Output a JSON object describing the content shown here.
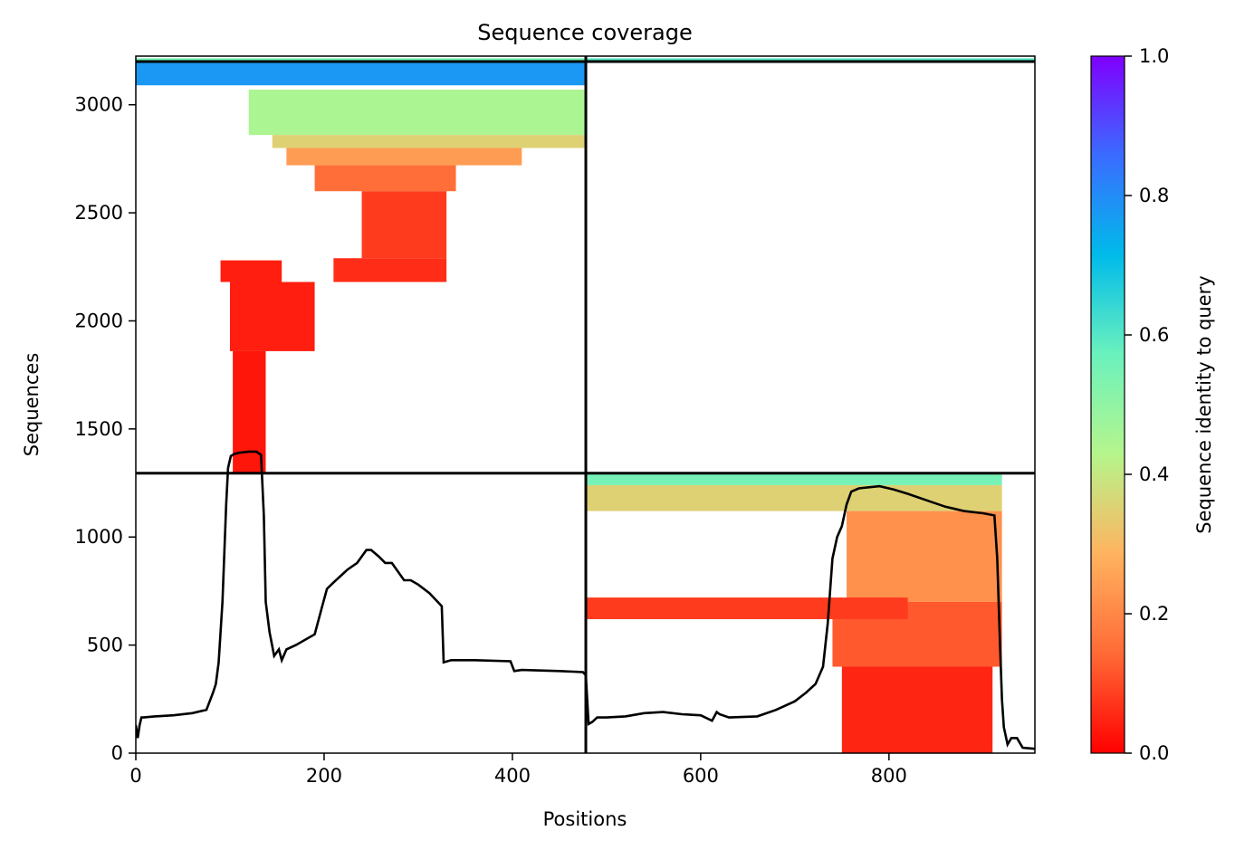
{
  "chart_data": {
    "type": "heatmap",
    "title": "Sequence coverage",
    "xlabel": "Positions",
    "ylabel": "Sequences",
    "xlim": [
      0,
      955
    ],
    "ylim": [
      0,
      3225
    ],
    "xticks": [
      0,
      200,
      400,
      600,
      800
    ],
    "yticks": [
      0,
      500,
      1000,
      1500,
      2000,
      2500,
      3000
    ],
    "colorbar": {
      "label": "Sequence identity to query",
      "range": [
        0.0,
        1.0
      ],
      "ticks": [
        "0.0",
        "0.2",
        "0.4",
        "0.6",
        "0.8",
        "1.0"
      ],
      "colormap": "rainbow_r",
      "stops": [
        "#ff0000",
        "#ff6a36",
        "#ffb360",
        "#b6f58c",
        "#6bf2bd",
        "#00bbea",
        "#3a6cff",
        "#8000ff"
      ]
    },
    "chain_boundary_x": 478,
    "chain_boundary_ys": [
      1295,
      3200
    ],
    "coverage_line": {
      "name": "",
      "color": "#000000",
      "x": [
        0,
        2,
        4,
        6,
        8,
        20,
        40,
        60,
        75,
        82,
        85,
        88,
        92,
        96,
        98,
        101,
        105,
        110,
        120,
        128,
        133,
        136,
        138,
        142,
        147,
        152,
        155,
        160,
        170,
        190,
        198,
        203,
        210,
        225,
        235,
        245,
        250,
        258,
        265,
        272,
        285,
        292,
        300,
        312,
        325,
        327,
        335,
        360,
        398,
        402,
        410,
        450,
        475,
        478,
        481,
        485,
        490,
        500,
        520,
        540,
        560,
        580,
        600,
        612,
        617,
        620,
        630,
        660,
        680,
        700,
        712,
        722,
        730,
        735,
        740,
        745,
        750,
        755,
        760,
        768,
        790,
        805,
        820,
        840,
        860,
        870,
        880,
        900,
        912,
        915,
        918,
        920,
        922,
        926,
        930,
        936,
        942,
        955
      ],
      "y": [
        130,
        70,
        130,
        165,
        165,
        170,
        175,
        185,
        200,
        280,
        320,
        420,
        700,
        1150,
        1320,
        1375,
        1385,
        1390,
        1395,
        1395,
        1380,
        1100,
        700,
        560,
        450,
        480,
        430,
        480,
        500,
        550,
        680,
        760,
        790,
        850,
        880,
        940,
        940,
        910,
        880,
        880,
        800,
        800,
        780,
        740,
        680,
        420,
        430,
        430,
        425,
        380,
        385,
        380,
        375,
        360,
        135,
        145,
        165,
        165,
        170,
        185,
        190,
        180,
        175,
        150,
        190,
        180,
        165,
        170,
        200,
        240,
        280,
        320,
        400,
        600,
        900,
        1000,
        1050,
        1150,
        1210,
        1225,
        1235,
        1220,
        1200,
        1170,
        1140,
        1130,
        1120,
        1110,
        1100,
        900,
        500,
        250,
        120,
        40,
        70,
        70,
        25,
        20
      ]
    },
    "msa_bands": [
      {
        "x": [
          0,
          478
        ],
        "y": [
          3200,
          3215
        ],
        "identity": 0.55
      },
      {
        "x": [
          0,
          478
        ],
        "y": [
          3090,
          3200
        ],
        "identity": 0.78
      },
      {
        "x": [
          120,
          478
        ],
        "y": [
          2860,
          3070
        ],
        "identity": 0.45
      },
      {
        "x": [
          145,
          478
        ],
        "y": [
          2800,
          2860
        ],
        "identity": 0.35
      },
      {
        "x": [
          160,
          410
        ],
        "y": [
          2720,
          2800
        ],
        "identity": 0.24
      },
      {
        "x": [
          190,
          340
        ],
        "y": [
          2600,
          2720
        ],
        "identity": 0.15
      },
      {
        "x": [
          240,
          330
        ],
        "y": [
          2290,
          2600
        ],
        "identity": 0.08
      },
      {
        "x": [
          210,
          330
        ],
        "y": [
          2180,
          2290
        ],
        "identity": 0.06
      },
      {
        "x": [
          90,
          155
        ],
        "y": [
          2180,
          2280
        ],
        "identity": 0.04
      },
      {
        "x": [
          100,
          190
        ],
        "y": [
          1860,
          2180
        ],
        "identity": 0.04
      },
      {
        "x": [
          103,
          138
        ],
        "y": [
          1295,
          1860
        ],
        "identity": 0.03
      },
      {
        "x": [
          478,
          955
        ],
        "y": [
          3200,
          3215
        ],
        "identity": 0.6
      },
      {
        "x": [
          478,
          920
        ],
        "y": [
          1240,
          1290
        ],
        "identity": 0.55
      },
      {
        "x": [
          478,
          920
        ],
        "y": [
          1120,
          1240
        ],
        "identity": 0.35
      },
      {
        "x": [
          755,
          920
        ],
        "y": [
          700,
          1120
        ],
        "identity": 0.22
      },
      {
        "x": [
          740,
          920
        ],
        "y": [
          400,
          700
        ],
        "identity": 0.12
      },
      {
        "x": [
          750,
          910
        ],
        "y": [
          0,
          400
        ],
        "identity": 0.05
      },
      {
        "x": [
          478,
          820
        ],
        "y": [
          620,
          720
        ],
        "identity": 0.08
      }
    ]
  }
}
